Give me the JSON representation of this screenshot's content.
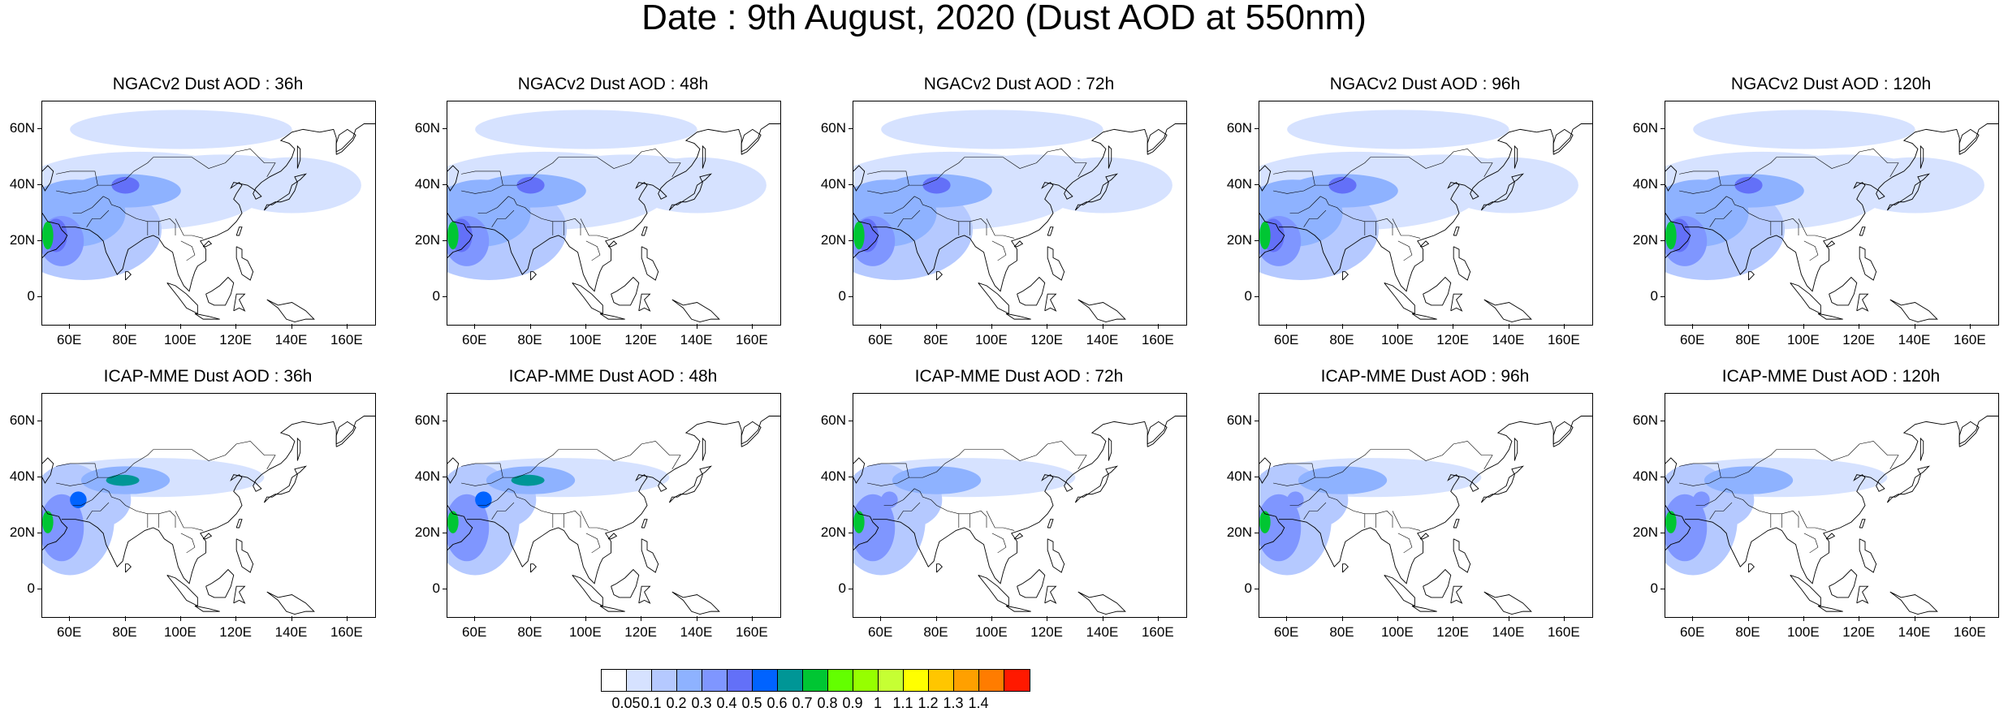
{
  "title": "Date : 9th August, 2020 (Dust AOD at 550nm)",
  "rows": [
    {
      "model": "NGACv2",
      "panels": [
        {
          "title": "NGACv2 Dust AOD : 36h"
        },
        {
          "title": "NGACv2 Dust AOD : 48h"
        },
        {
          "title": "NGACv2 Dust AOD : 72h"
        },
        {
          "title": "NGACv2 Dust AOD : 96h"
        },
        {
          "title": "NGACv2 Dust AOD : 120h"
        }
      ]
    },
    {
      "model": "ICAP-MME",
      "panels": [
        {
          "title": "ICAP-MME Dust AOD : 36h"
        },
        {
          "title": "ICAP-MME Dust AOD : 48h"
        },
        {
          "title": "ICAP-MME Dust AOD : 72h"
        },
        {
          "title": "ICAP-MME Dust AOD : 96h"
        },
        {
          "title": "ICAP-MME Dust AOD : 120h"
        }
      ]
    }
  ],
  "map_extent": {
    "lon_min": 50,
    "lon_max": 170,
    "lat_min": -10,
    "lat_max": 70
  },
  "lat_ticks": [
    0,
    20,
    40,
    60
  ],
  "lat_tick_labels": [
    "0",
    "20N",
    "40N",
    "60N"
  ],
  "lon_ticks": [
    60,
    80,
    100,
    120,
    140,
    160
  ],
  "lon_tick_labels": [
    "60E",
    "80E",
    "100E",
    "120E",
    "140E",
    "160E"
  ],
  "colorbar": {
    "colors": [
      "#ffffff",
      "#d6e2ff",
      "#b5c9ff",
      "#8eb2ff",
      "#7f96ff",
      "#6370f8",
      "#0063ff",
      "#009696",
      "#00c633",
      "#63ff00",
      "#96ff00",
      "#c6ff33",
      "#ffff00",
      "#ffc600",
      "#ffa000",
      "#ff7c00",
      "#ff1900"
    ],
    "labels": [
      "0.05",
      "0.1",
      "0.2",
      "0.3",
      "0.4",
      "0.5",
      "0.6",
      "0.7",
      "0.8",
      "0.9",
      "1",
      "1.1",
      "1.2",
      "1.3",
      "1.4"
    ]
  }
}
